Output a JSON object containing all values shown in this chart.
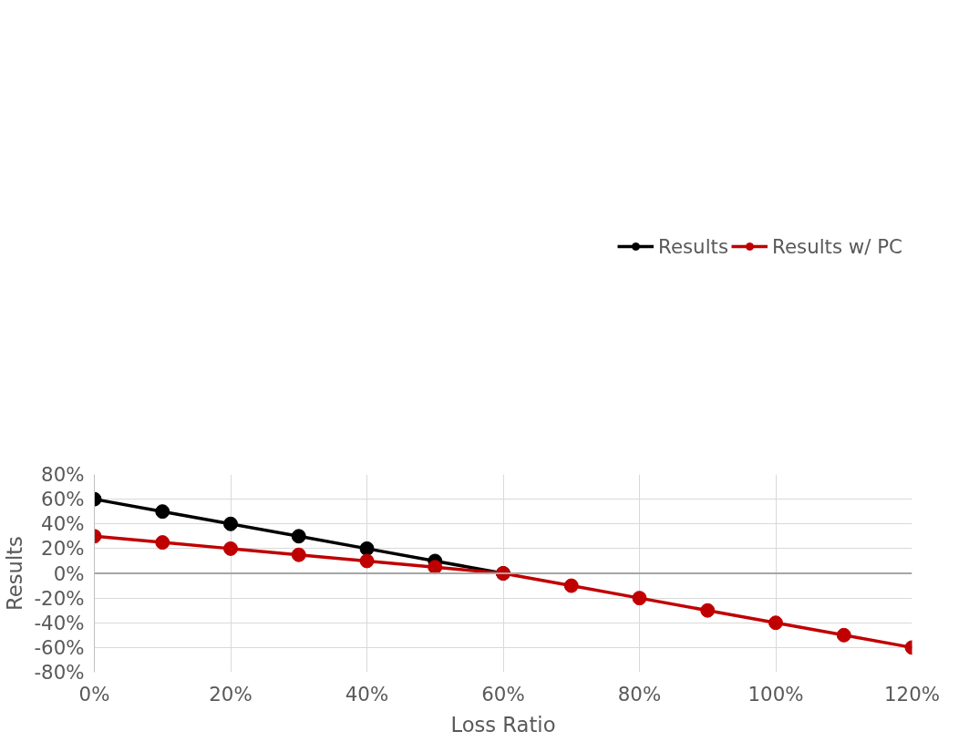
{
  "chart_data": {
    "type": "line",
    "xlabel": "Loss Ratio",
    "ylabel": "Results",
    "x": [
      0,
      10,
      20,
      30,
      40,
      50,
      60,
      70,
      80,
      90,
      100,
      110,
      120
    ],
    "series": [
      {
        "name": "Results",
        "color": "#000000",
        "values": [
          60,
          50,
          40,
          30,
          20,
          10,
          0,
          null,
          null,
          null,
          null,
          null,
          null
        ]
      },
      {
        "name": "Results w/ PC",
        "color": "#c00000",
        "values": [
          30,
          25,
          20,
          15,
          10,
          5,
          0,
          -10,
          -20,
          -30,
          -40,
          -50,
          -60
        ]
      }
    ],
    "xlim": [
      0,
      120
    ],
    "ylim": [
      -80,
      80
    ],
    "xticks": [
      {
        "value": 0,
        "label": "0%"
      },
      {
        "value": 20,
        "label": "20%"
      },
      {
        "value": 40,
        "label": "40%"
      },
      {
        "value": 60,
        "label": "60%"
      },
      {
        "value": 80,
        "label": "80%"
      },
      {
        "value": 100,
        "label": "100%"
      },
      {
        "value": 120,
        "label": "120%"
      }
    ],
    "yticks": [
      {
        "value": -80,
        "label": "-80%"
      },
      {
        "value": -60,
        "label": "-60%"
      },
      {
        "value": -40,
        "label": "-40%"
      },
      {
        "value": -20,
        "label": "-20%"
      },
      {
        "value": 0,
        "label": "0%"
      },
      {
        "value": 20,
        "label": "20%"
      },
      {
        "value": 40,
        "label": "40%"
      },
      {
        "value": 60,
        "label": "60%"
      },
      {
        "value": 80,
        "label": "80%"
      }
    ],
    "grid": true,
    "legend": "top",
    "marker": "circle",
    "line_style": "solid"
  }
}
